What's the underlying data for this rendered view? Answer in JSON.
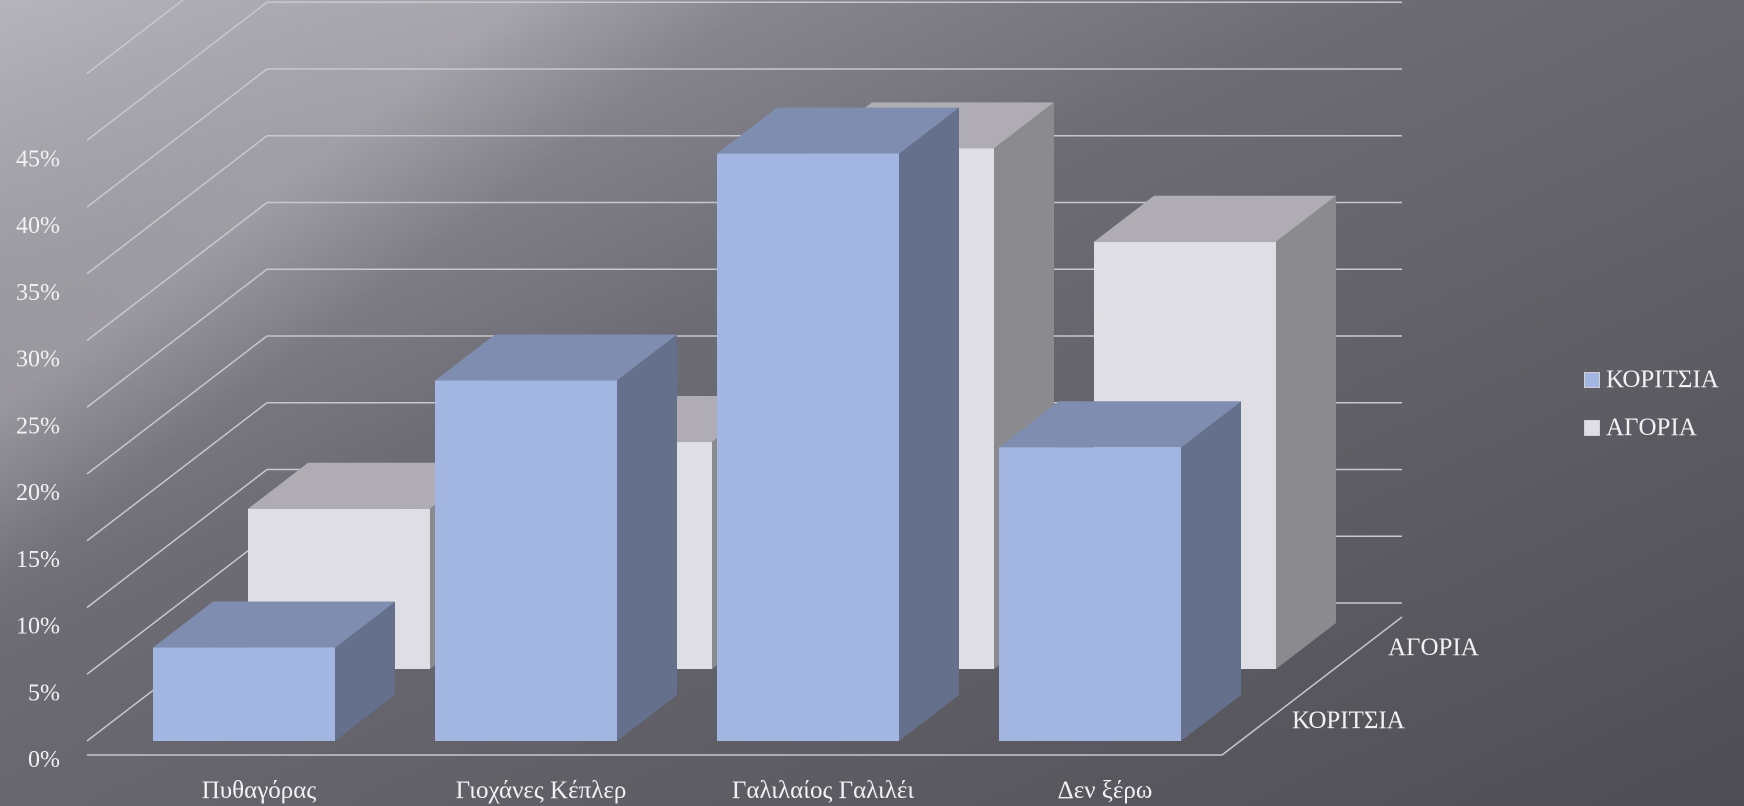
{
  "chart_data": {
    "type": "bar",
    "categories": [
      "Πυθαγόρας",
      "Γιοχάνες Κέπλερ",
      "Γαλιλαίος Γαλιλέι",
      "Δεν ξέρω"
    ],
    "series": [
      {
        "name": "ΚΟΡΙΤΣΙΑ",
        "values": [
          7,
          27,
          44,
          22
        ],
        "color": "#a3b5e1"
      },
      {
        "name": "ΑΓΟΡΙΑ",
        "values": [
          12,
          17,
          39,
          32
        ],
        "color": "#e0dee5"
      }
    ],
    "y_ticks": [
      "0%",
      "5%",
      "10%",
      "15%",
      "20%",
      "25%",
      "30%",
      "35%",
      "40%",
      "45%"
    ],
    "ylim": [
      0,
      45
    ],
    "depth_labels": [
      "ΚΟΡΙΤΣΙΑ",
      "ΑΓΟΡΙΑ"
    ],
    "grid": true,
    "legend_position": "right",
    "colors": {
      "background": "#5a5960",
      "grid": "#c9c7ce",
      "text": "#f2f2f4"
    }
  }
}
